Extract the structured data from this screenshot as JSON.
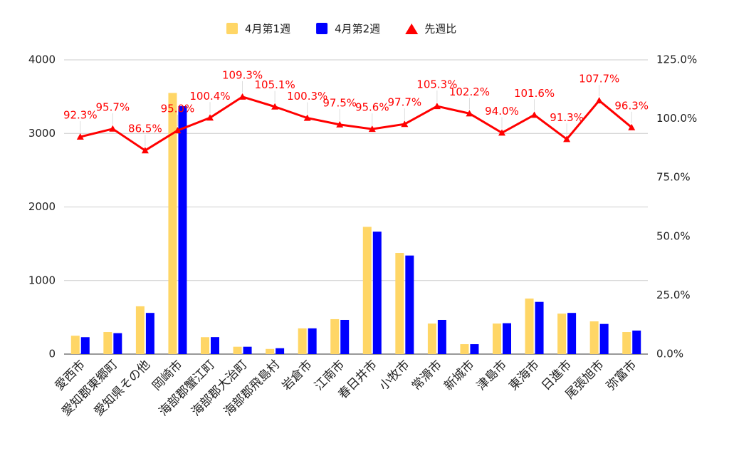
{
  "chart_data": {
    "type": "bar_line",
    "categories": [
      "愛西市",
      "愛知郡東郷町",
      "愛知県その他",
      "岡崎市",
      "海部郡蟹江町",
      "海部郡大治町",
      "海部郡飛島村",
      "岩倉市",
      "江南市",
      "春日井市",
      "小牧市",
      "常滑市",
      "新城市",
      "津島市",
      "東海市",
      "日進市",
      "尾張旭市",
      "弥富市"
    ],
    "series": [
      {
        "name": "4月第1週",
        "color": "#ffd666",
        "values": [
          250,
          300,
          650,
          3550,
          230,
          100,
          70,
          350,
          475,
          1730,
          1375,
          415,
          135,
          415,
          755,
          550,
          445,
          300
        ]
      },
      {
        "name": "4月第2週",
        "color": "#0000ff",
        "values": [
          230,
          285,
          560,
          3370,
          231,
          100,
          80,
          350,
          465,
          1665,
          1340,
          465,
          135,
          420,
          710,
          560,
          410,
          320
        ]
      },
      {
        "name": "先週比",
        "color": "#ff0000",
        "axis": "y2",
        "values": [
          92.3,
          95.7,
          86.5,
          95.0,
          100.4,
          109.3,
          105.1,
          100.3,
          97.5,
          95.6,
          97.7,
          105.3,
          102.2,
          94.0,
          101.6,
          91.3,
          107.7,
          96.3
        ],
        "value_labels": [
          "92.3%",
          "95.7%",
          "86.5%",
          "95.0%",
          "100.4%",
          "109.3%",
          "105.1%",
          "100.3%",
          "97.5%",
          "95.6%",
          "97.7%",
          "105.3%",
          "102.2%",
          "94.0%",
          "101.6%",
          "91.3%",
          "107.7%",
          "96.3%"
        ]
      }
    ],
    "ylim": [
      0,
      4000
    ],
    "yticks": [
      0,
      1000,
      2000,
      3000,
      4000
    ],
    "y2lim": [
      0,
      125
    ],
    "y2ticks": [
      {
        "value": 0,
        "label": "0.0%"
      },
      {
        "value": 25,
        "label": "25.0%"
      },
      {
        "value": 50,
        "label": "50.0%"
      },
      {
        "value": 75,
        "label": "75.0%"
      },
      {
        "value": 100,
        "label": "100.0%"
      },
      {
        "value": 125,
        "label": "125.0%"
      }
    ],
    "grid": true,
    "legend": "top"
  }
}
